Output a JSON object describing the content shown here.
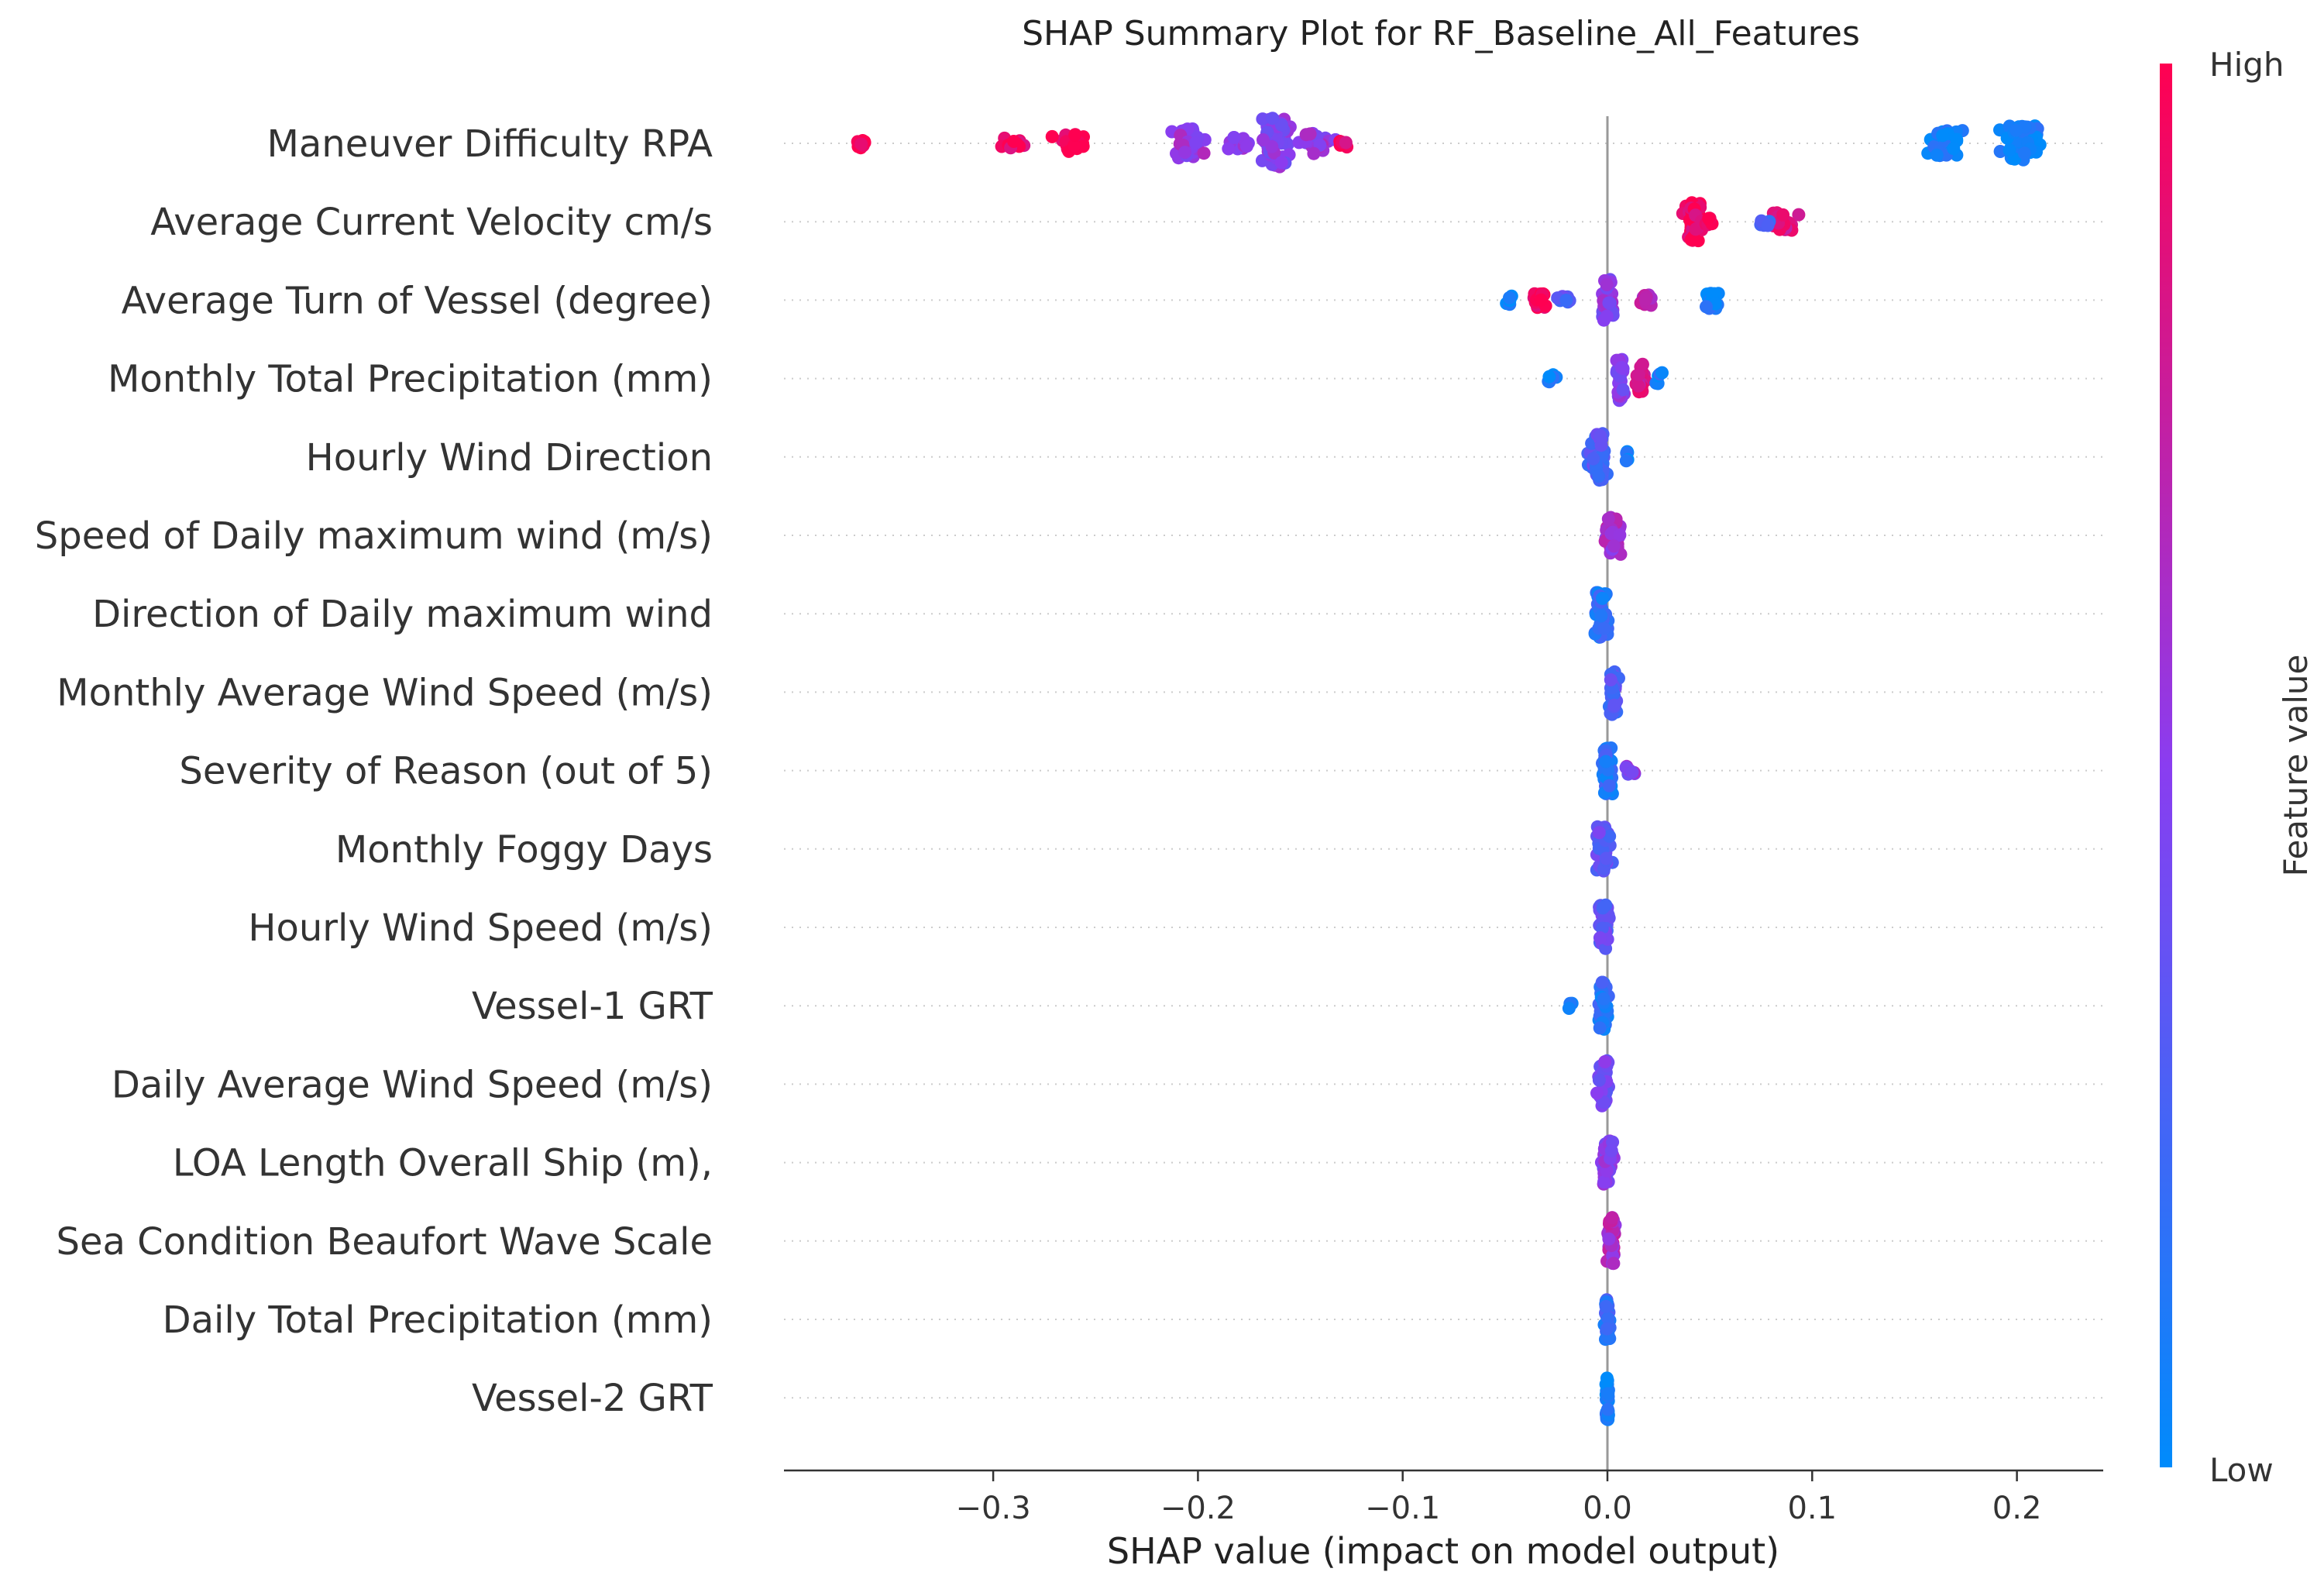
{
  "chart_data": {
    "type": "scatter",
    "subtype": "shap-beeswarm",
    "title": "SHAP Summary Plot for RF_Baseline_All_Features",
    "xlabel": "SHAP value (impact on model output)",
    "ylabel": "",
    "xlim": [
      -0.4,
      0.24
    ],
    "xticks": [
      -0.3,
      -0.2,
      -0.1,
      0.0,
      0.1,
      0.2
    ],
    "xtick_labels": [
      "−0.3",
      "−0.2",
      "−0.1",
      "0.0",
      "0.1",
      "0.2"
    ],
    "colorbar": {
      "label": "Feature value",
      "high_label": "High",
      "low_label": "Low"
    },
    "colors": {
      "high": "#ff0051",
      "low": "#008bfb",
      "zero_line": "#999999",
      "grid": "#cccccc"
    },
    "features": [
      {
        "name": "Maneuver Difficulty RPA",
        "clusters": [
          {
            "x": -0.365,
            "spread": 0.005,
            "fv": 1.0,
            "n": 10,
            "h": 0.3
          },
          {
            "x": -0.29,
            "spread": 0.015,
            "fv": 0.95,
            "n": 12,
            "h": 0.35
          },
          {
            "x": -0.262,
            "spread": 0.012,
            "fv": 0.98,
            "n": 26,
            "h": 0.6
          },
          {
            "x": -0.205,
            "spread": 0.012,
            "fv": 0.55,
            "n": 38,
            "h": 1.0
          },
          {
            "x": -0.18,
            "spread": 0.01,
            "fv": 0.5,
            "n": 12,
            "h": 0.4
          },
          {
            "x": -0.163,
            "spread": 0.01,
            "fv": 0.5,
            "n": 60,
            "h": 1.7
          },
          {
            "x": -0.142,
            "spread": 0.012,
            "fv": 0.55,
            "n": 22,
            "h": 0.7
          },
          {
            "x": -0.13,
            "spread": 0.004,
            "fv": 0.9,
            "n": 6,
            "h": 0.3
          },
          {
            "x": 0.165,
            "spread": 0.012,
            "fv": 0.05,
            "n": 42,
            "h": 1.0
          },
          {
            "x": 0.202,
            "spread": 0.012,
            "fv": 0.05,
            "n": 52,
            "h": 1.2
          }
        ]
      },
      {
        "name": "Average Current Velocity cm/s",
        "clusters": [
          {
            "x": 0.042,
            "spread": 0.006,
            "fv": 0.95,
            "n": 46,
            "h": 1.3
          },
          {
            "x": 0.05,
            "spread": 0.004,
            "fv": 1.0,
            "n": 6,
            "h": 0.3
          },
          {
            "x": 0.085,
            "spread": 0.01,
            "fv": 0.85,
            "n": 34,
            "h": 0.6
          },
          {
            "x": 0.077,
            "spread": 0.004,
            "fv": 0.2,
            "n": 6,
            "h": 0.3
          }
        ]
      },
      {
        "name": "Average Turn of Vessel (degree)",
        "clusters": [
          {
            "x": -0.048,
            "spread": 0.003,
            "fv": 0.05,
            "n": 5,
            "h": 0.3
          },
          {
            "x": -0.033,
            "spread": 0.006,
            "fv": 0.95,
            "n": 18,
            "h": 0.5
          },
          {
            "x": -0.02,
            "spread": 0.006,
            "fv": 0.3,
            "n": 8,
            "h": 0.3
          },
          {
            "x": 0.0,
            "spread": 0.004,
            "fv": 0.5,
            "n": 30,
            "h": 1.5
          },
          {
            "x": 0.018,
            "spread": 0.006,
            "fv": 0.7,
            "n": 12,
            "h": 0.4
          },
          {
            "x": 0.051,
            "spread": 0.005,
            "fv": 0.05,
            "n": 26,
            "h": 0.6
          }
        ]
      },
      {
        "name": "Monthly Total Precipitation (mm)",
        "clusters": [
          {
            "x": -0.028,
            "spread": 0.006,
            "fv": 0.05,
            "n": 6,
            "h": 0.3
          },
          {
            "x": 0.006,
            "spread": 0.003,
            "fv": 0.5,
            "n": 36,
            "h": 1.5
          },
          {
            "x": 0.016,
            "spread": 0.004,
            "fv": 0.8,
            "n": 22,
            "h": 1.0
          },
          {
            "x": 0.025,
            "spread": 0.002,
            "fv": 0.1,
            "n": 6,
            "h": 0.4
          }
        ]
      },
      {
        "name": "Hourly Wind Direction",
        "clusters": [
          {
            "x": -0.005,
            "spread": 0.006,
            "fv": 0.3,
            "n": 70,
            "h": 1.6
          },
          {
            "x": 0.01,
            "spread": 0.002,
            "fv": 0.05,
            "n": 6,
            "h": 0.4
          }
        ]
      },
      {
        "name": "Speed of Daily maximum wind (m/s)",
        "clusters": [
          {
            "x": 0.003,
            "spread": 0.006,
            "fv": 0.6,
            "n": 45,
            "h": 1.3
          }
        ]
      },
      {
        "name": "Direction of Daily maximum wind",
        "clusters": [
          {
            "x": -0.003,
            "spread": 0.005,
            "fv": 0.15,
            "n": 55,
            "h": 1.6
          }
        ]
      },
      {
        "name": "Monthly Average Wind Speed (m/s)",
        "clusters": [
          {
            "x": 0.003,
            "spread": 0.003,
            "fv": 0.3,
            "n": 45,
            "h": 1.6
          }
        ]
      },
      {
        "name": "Severity of Reason (out of 5)",
        "clusters": [
          {
            "x": 0.0,
            "spread": 0.003,
            "fv": 0.15,
            "n": 55,
            "h": 1.6
          },
          {
            "x": 0.012,
            "spread": 0.004,
            "fv": 0.5,
            "n": 8,
            "h": 0.3
          }
        ]
      },
      {
        "name": "Monthly Foggy Days",
        "clusters": [
          {
            "x": -0.002,
            "spread": 0.005,
            "fv": 0.35,
            "n": 45,
            "h": 1.5
          }
        ]
      },
      {
        "name": "Hourly Wind Speed (m/s)",
        "clusters": [
          {
            "x": -0.002,
            "spread": 0.004,
            "fv": 0.35,
            "n": 45,
            "h": 1.6
          }
        ]
      },
      {
        "name": "Vessel-1 GRT",
        "clusters": [
          {
            "x": -0.018,
            "spread": 0.002,
            "fv": 0.05,
            "n": 3,
            "h": 0.2
          },
          {
            "x": -0.002,
            "spread": 0.003,
            "fv": 0.15,
            "n": 45,
            "h": 1.6
          }
        ]
      },
      {
        "name": "Daily Average Wind Speed (m/s)",
        "clusters": [
          {
            "x": -0.002,
            "spread": 0.004,
            "fv": 0.4,
            "n": 45,
            "h": 1.6
          }
        ]
      },
      {
        "name": "LOA Length Overall Ship (m),",
        "clusters": [
          {
            "x": 0.0,
            "spread": 0.004,
            "fv": 0.5,
            "n": 45,
            "h": 1.5
          }
        ]
      },
      {
        "name": "Sea Condition Beaufort Wave Scale",
        "clusters": [
          {
            "x": 0.002,
            "spread": 0.003,
            "fv": 0.65,
            "n": 45,
            "h": 1.6
          }
        ]
      },
      {
        "name": "Daily Total Precipitation (mm)",
        "clusters": [
          {
            "x": 0.0,
            "spread": 0.002,
            "fv": 0.2,
            "n": 30,
            "h": 1.4
          }
        ]
      },
      {
        "name": "Vessel-2 GRT",
        "clusters": [
          {
            "x": 0.0,
            "spread": 0.001,
            "fv": 0.05,
            "n": 30,
            "h": 1.5
          }
        ]
      }
    ]
  }
}
